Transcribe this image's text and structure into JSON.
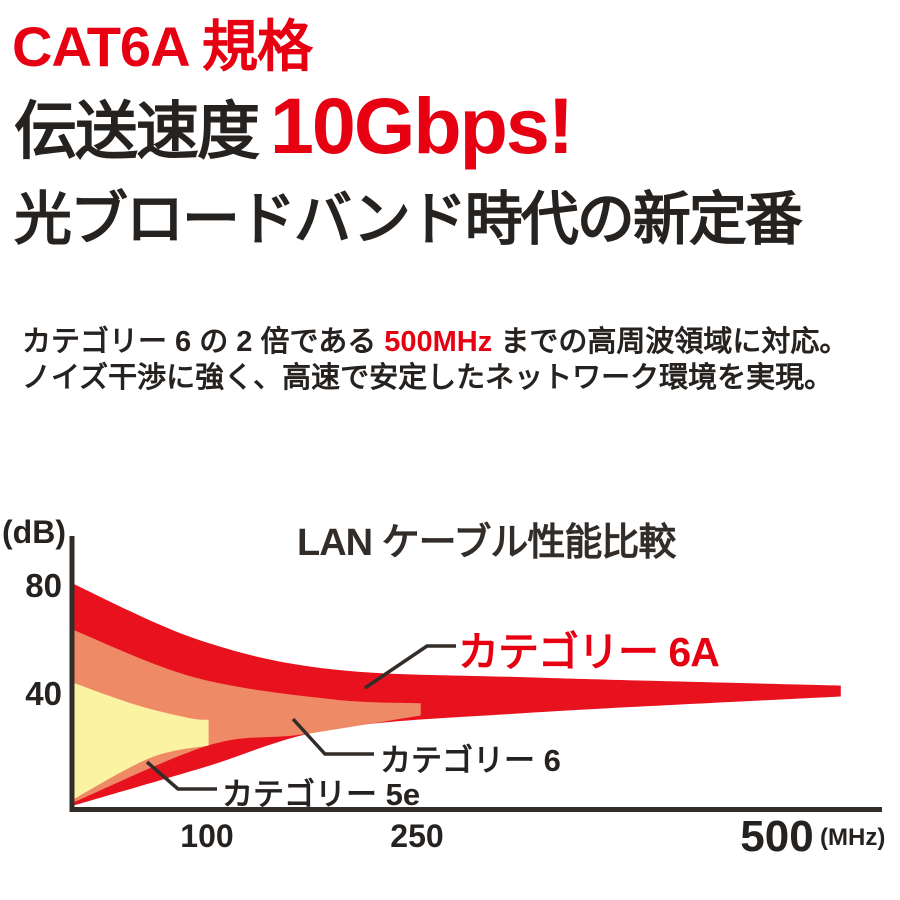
{
  "colors": {
    "red": "#e60012",
    "dark_text": "#262220",
    "axis": "#332d2a",
    "cat6a_fill": "#e8121f",
    "cat6_fill": "#ef8a66",
    "cat5e_fill": "#faf3a1"
  },
  "header": {
    "title_line1": "CAT6A 規格",
    "title_line2_black": "伝送速度",
    "title_line2_red": "10Gbps!",
    "title_line3": "光ブロードバンド時代の新定番"
  },
  "description": {
    "line1_pre": "カテゴリー 6 の 2 倍である ",
    "line1_highlight": "500MHz",
    "line1_post": " までの高周波領域に対応。",
    "line2": "ノイズ干渉に強く、高速で安定したネットワーク環境を実現。"
  },
  "chart_data": {
    "type": "area",
    "title": "LAN ケーブル性能比較",
    "y_axis": {
      "unit_label": "(dB)",
      "ticks": [
        "80",
        "40"
      ]
    },
    "x_axis": {
      "ticks": [
        "100",
        "250",
        "500"
      ],
      "unit_label": "(MHz)"
    },
    "legend_position": "inline-callouts",
    "grid": false,
    "series": [
      {
        "name": "カテゴリー 6A",
        "fill": "#e8121f",
        "label_color": "#e60012",
        "rated_bandwidth_mhz": 500,
        "envelope_top": [
          [
            0,
            83
          ],
          [
            90,
            62
          ],
          [
            185,
            51
          ],
          [
            325,
            48
          ],
          [
            545,
            45
          ]
        ],
        "envelope_bottom": [
          [
            0,
            0.5
          ],
          [
            95,
            15
          ],
          [
            185,
            29
          ],
          [
            325,
            35
          ],
          [
            545,
            41
          ]
        ]
      },
      {
        "name": "カテゴリー 6",
        "fill": "#ef8a66",
        "label_color": "#262220",
        "rated_bandwidth_mhz": 250,
        "envelope_top": [
          [
            0,
            66
          ],
          [
            88,
            48
          ],
          [
            185,
            40
          ],
          [
            248,
            38.5
          ]
        ],
        "envelope_bottom": [
          [
            0,
            1.5
          ],
          [
            98,
            23
          ],
          [
            163,
            27
          ],
          [
            248,
            34
          ]
        ]
      },
      {
        "name": "カテゴリー 5e",
        "fill": "#faf3a1",
        "label_color": "#262220",
        "rated_bandwidth_mhz": 100,
        "envelope_top": [
          [
            0,
            46.5
          ],
          [
            46,
            38
          ],
          [
            85,
            33
          ],
          [
            98,
            32.5
          ]
        ],
        "envelope_bottom": [
          [
            0,
            2.5
          ],
          [
            57,
            18.5
          ],
          [
            98,
            23
          ]
        ]
      }
    ]
  }
}
